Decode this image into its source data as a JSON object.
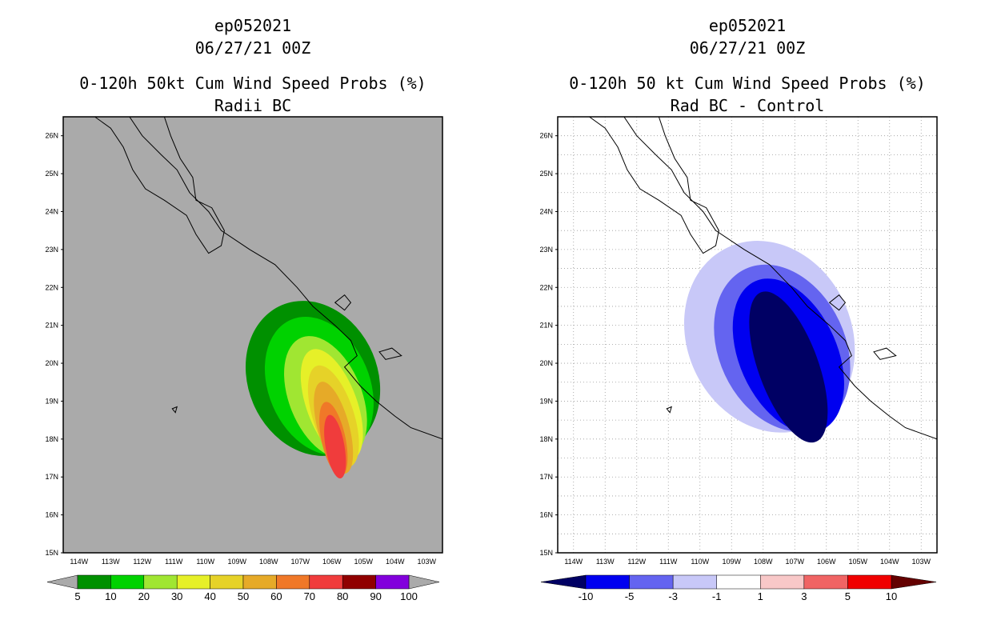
{
  "chart_data": [
    {
      "type": "heatmap",
      "title_lines": [
        "ep052021",
        "06/27/21 00Z",
        "0-120h 50kt Cum Wind Speed Probs (%)",
        "Radii BC"
      ],
      "x_ticks": [
        "114W",
        "113W",
        "112W",
        "111W",
        "110W",
        "109W",
        "108W",
        "107W",
        "106W",
        "105W",
        "104W",
        "103W"
      ],
      "y_ticks": [
        "15N",
        "16N",
        "17N",
        "18N",
        "19N",
        "20N",
        "21N",
        "22N",
        "23N",
        "24N",
        "25N",
        "26N"
      ],
      "lon_range": [
        -114.5,
        -102.5
      ],
      "lat_range": [
        15,
        26.5
      ],
      "grid": false,
      "background_color": "#aaaaaa",
      "colorbar": {
        "labels": [
          "5",
          "10",
          "20",
          "30",
          "40",
          "50",
          "60",
          "70",
          "80",
          "90",
          "100"
        ],
        "colors": [
          "#009000",
          "#00d200",
          "#a0e632",
          "#e6f028",
          "#e6d228",
          "#e6aa28",
          "#f07828",
          "#f03c3c",
          "#900000",
          "#8200dc"
        ]
      },
      "contours": [
        {
          "level": 5,
          "color": "#009000",
          "center": [
            -106.6,
            19.6
          ],
          "half_widths": [
            2.05,
            2.1
          ],
          "tilt": 23
        },
        {
          "level": 10,
          "color": "#00d200",
          "center": [
            -106.4,
            19.4
          ],
          "half_widths": [
            1.6,
            1.9
          ],
          "tilt": 23
        },
        {
          "level": 20,
          "color": "#a0e632",
          "center": [
            -106.2,
            19.1
          ],
          "half_widths": [
            1.15,
            1.7
          ],
          "tilt": 22
        },
        {
          "level": 30,
          "color": "#e6f028",
          "center": [
            -106.0,
            18.9
          ],
          "half_widths": [
            0.8,
            1.55
          ],
          "tilt": 20
        },
        {
          "level": 40,
          "color": "#e6d228",
          "center": [
            -105.95,
            18.6
          ],
          "half_widths": [
            0.65,
            1.4
          ],
          "tilt": 18
        },
        {
          "level": 50,
          "color": "#e6aa28",
          "center": [
            -105.95,
            18.3
          ],
          "half_widths": [
            0.5,
            1.25
          ],
          "tilt": 15
        },
        {
          "level": 60,
          "color": "#f07828",
          "center": [
            -105.95,
            18.0
          ],
          "half_widths": [
            0.38,
            1.0
          ],
          "tilt": 12
        },
        {
          "level": 70,
          "color": "#f03c3c",
          "center": [
            -105.9,
            17.8
          ],
          "half_widths": [
            0.3,
            0.85
          ],
          "tilt": 10
        }
      ]
    },
    {
      "type": "heatmap",
      "title_lines": [
        "ep052021",
        "06/27/21 00Z",
        "0-120h 50 kt Cum Wind Speed Probs (%)",
        "Rad BC - Control"
      ],
      "x_ticks": [
        "114W",
        "113W",
        "112W",
        "111W",
        "110W",
        "109W",
        "108W",
        "107W",
        "106W",
        "105W",
        "104W",
        "103W"
      ],
      "y_ticks": [
        "15N",
        "16N",
        "17N",
        "18N",
        "19N",
        "20N",
        "21N",
        "22N",
        "23N",
        "24N",
        "25N",
        "26N"
      ],
      "lon_range": [
        -114.5,
        -102.5
      ],
      "lat_range": [
        15,
        26.5
      ],
      "grid": true,
      "background_color": "#ffffff",
      "colorbar": {
        "labels": [
          "-10",
          "-5",
          "-3",
          "-1",
          "1",
          "3",
          "5",
          "10"
        ],
        "colors": [
          "#000064",
          "#0000f0",
          "#6464f0",
          "#c8c8f8",
          "#ffffff",
          "#f8c8c8",
          "#f06464",
          "#f00000",
          "#640000"
        ]
      },
      "contours": [
        {
          "level": -1,
          "color": "#c8c8f8",
          "center": [
            -107.8,
            20.7
          ],
          "half_widths": [
            2.6,
            2.6
          ],
          "tilt": 25
        },
        {
          "level": -3,
          "color": "#6464f0",
          "center": [
            -107.4,
            20.4
          ],
          "half_widths": [
            2.0,
            2.3
          ],
          "tilt": 25
        },
        {
          "level": -5,
          "color": "#0000f0",
          "center": [
            -107.2,
            20.2
          ],
          "half_widths": [
            1.55,
            2.15
          ],
          "tilt": 24
        },
        {
          "level": -10,
          "color": "#000064",
          "center": [
            -107.2,
            19.9
          ],
          "half_widths": [
            0.95,
            2.1
          ],
          "tilt": 20
        }
      ]
    }
  ]
}
